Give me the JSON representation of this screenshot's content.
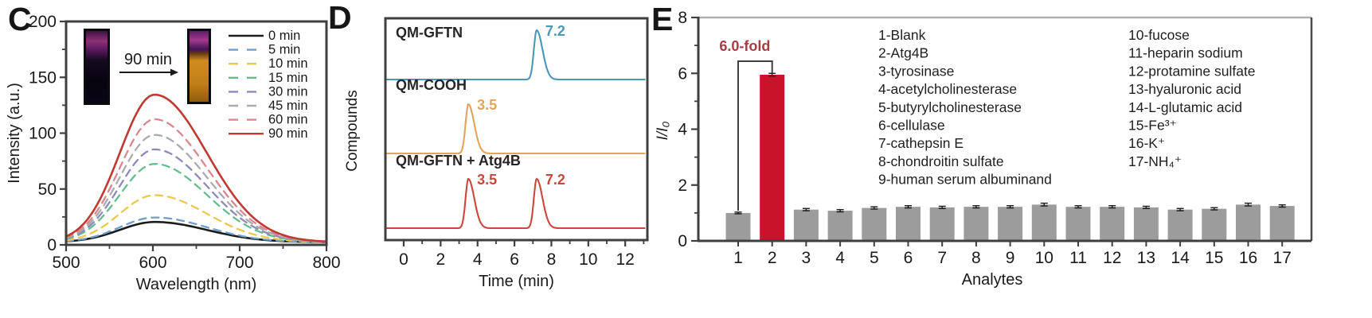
{
  "panels": {
    "c": {
      "label": "C"
    },
    "d": {
      "label": "D"
    },
    "e": {
      "label": "E"
    }
  },
  "chart_data": [
    {
      "panel": "C",
      "type": "line",
      "title": "",
      "xlabel": "Wavelength (nm)",
      "ylabel": "Intensity (a.u.)",
      "xlim": [
        500,
        800
      ],
      "ylim": [
        0,
        200
      ],
      "xticks": [
        500,
        600,
        700,
        800
      ],
      "x_minor_ticks": [
        550,
        650,
        750
      ],
      "yticks": [
        0,
        50,
        100,
        150,
        200
      ],
      "y_minor_ticks": [
        25,
        75,
        125,
        175
      ],
      "grid": false,
      "legend_position": "top-right",
      "peak_wavelength_nm": 602,
      "series": [
        {
          "label": "0 min",
          "color": "#1c1c1c",
          "style": "solid",
          "peak_intensity": 18
        },
        {
          "label": "5 min",
          "color": "#6f9fca",
          "style": "dashed",
          "peak_intensity": 22
        },
        {
          "label": "10 min",
          "color": "#e9c84d",
          "style": "dashed",
          "peak_intensity": 42
        },
        {
          "label": "15 min",
          "color": "#63bd8d",
          "style": "dashed",
          "peak_intensity": 70
        },
        {
          "label": "30 min",
          "color": "#8e89bd",
          "style": "dashed",
          "peak_intensity": 83
        },
        {
          "label": "45 min",
          "color": "#ababab",
          "style": "dashed",
          "peak_intensity": 96
        },
        {
          "label": "60 min",
          "color": "#d9868f",
          "style": "dashed",
          "peak_intensity": 110
        },
        {
          "label": "90 min",
          "color": "#bf3a31",
          "style": "solid",
          "peak_intensity": 132
        }
      ],
      "inset": {
        "arrow_label": "90 min",
        "cuvette_before": "dark-purple-cuvette",
        "cuvette_after": "orange-emission-cuvette"
      }
    },
    {
      "panel": "D",
      "type": "line",
      "xlabel": "Time (min)",
      "ylabel": "Compounds",
      "xlim": [
        -1,
        13.2
      ],
      "xticks": [
        0,
        2,
        4,
        6,
        8,
        10,
        12
      ],
      "x_minor_ticks": [
        1,
        3,
        5,
        7,
        9,
        11,
        13
      ],
      "grid": false,
      "traces": [
        {
          "label": "QM-GFTN",
          "color": "#4a98b6",
          "peaks": [
            {
              "time": 7.2,
              "label": "7.2"
            }
          ]
        },
        {
          "label": "QM-COOH",
          "color": "#e2a45b",
          "peaks": [
            {
              "time": 3.5,
              "label": "3.5"
            }
          ]
        },
        {
          "label": "QM-GFTN + Atg4B",
          "color": "#c9483c",
          "peaks": [
            {
              "time": 3.5,
              "label": "3.5"
            },
            {
              "time": 7.2,
              "label": "7.2"
            }
          ]
        }
      ]
    },
    {
      "panel": "E",
      "type": "bar",
      "xlabel": "Analytes",
      "ylabel": "I/I₀",
      "ylim": [
        0,
        8
      ],
      "yticks": [
        0,
        2,
        4,
        6,
        8
      ],
      "y_minor_ticks": [
        1,
        3,
        5,
        7
      ],
      "grid": false,
      "categories": [
        "1",
        "2",
        "3",
        "4",
        "5",
        "6",
        "7",
        "8",
        "9",
        "10",
        "11",
        "12",
        "13",
        "14",
        "15",
        "16",
        "17"
      ],
      "values": [
        1.0,
        5.95,
        1.12,
        1.08,
        1.18,
        1.22,
        1.2,
        1.22,
        1.22,
        1.3,
        1.22,
        1.22,
        1.2,
        1.12,
        1.15,
        1.3,
        1.25
      ],
      "errors": [
        0.03,
        0.05,
        0.04,
        0.04,
        0.04,
        0.04,
        0.04,
        0.04,
        0.04,
        0.05,
        0.04,
        0.04,
        0.04,
        0.04,
        0.04,
        0.05,
        0.04
      ],
      "bar_color": "#9c9c9c",
      "highlight": {
        "category": "2",
        "index": 1,
        "color": "#c9132b"
      },
      "annotation": {
        "text": "6.0-fold",
        "color": "#a83b44"
      },
      "legend_columns": [
        [
          "1-Blank",
          "2-Atg4B",
          "3-tyrosinase",
          "4-acetylcholinesterase",
          "5-butyrylcholinesterase",
          "6-cellulase",
          "7-cathepsin E",
          "8-chondroitin sulfate",
          "9-human serum albuminand"
        ],
        [
          "10-fucose",
          "11-heparin sodium",
          "12-protamine sulfate",
          "13-hyaluronic acid",
          "14-L-glutamic acid",
          "15-Fe³⁺",
          "16-K⁺",
          "17-NH₄⁺"
        ]
      ]
    }
  ]
}
